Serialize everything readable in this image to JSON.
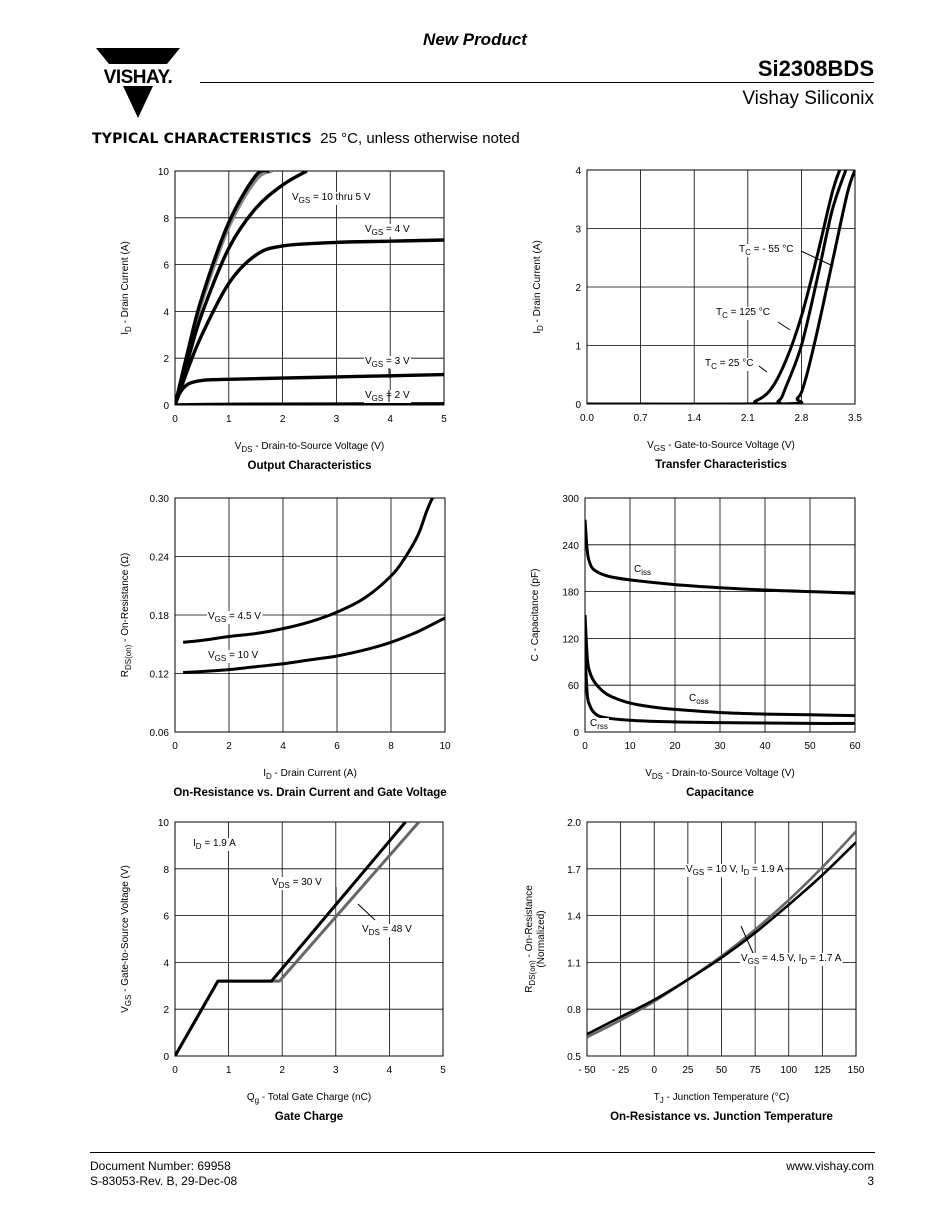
{
  "header": {
    "banner": "New Product",
    "part_number": "Si2308BDS",
    "company": "Vishay Siliconix",
    "logo_text": "VISHAY."
  },
  "section": {
    "title": "TYPICAL CHARACTERISTICS",
    "subtitle": "25 °C, unless otherwise noted"
  },
  "footer": {
    "doc_number": "Document Number: 69958",
    "revision": "S-83053-Rev. B, 29-Dec-08",
    "website": "www.vishay.com",
    "page": "3"
  },
  "chart_data": [
    {
      "id": "output",
      "type": "line",
      "title": "Output Characteristics",
      "xlabel": "V_DS - Drain-to-Source Voltage (V)",
      "ylabel": "I_D - Drain Current (A)",
      "xlim": [
        0,
        5
      ],
      "ylim": [
        0,
        10
      ],
      "xticks": [
        0,
        1,
        2,
        3,
        4,
        5
      ],
      "yticks": [
        0,
        2,
        4,
        6,
        8,
        10
      ],
      "xtick_labels": [
        "0",
        "1",
        "2",
        "3",
        "4",
        "5"
      ],
      "ytick_labels": [
        "0",
        "2",
        "4",
        "6",
        "8",
        "10"
      ],
      "series": [
        {
          "name": "VGS = 10 V",
          "color": "#888888",
          "x": [
            0,
            0.25,
            0.5,
            1.0,
            1.5,
            1.8
          ],
          "y": [
            0,
            2.3,
            4.4,
            7.6,
            9.6,
            10.0
          ]
        },
        {
          "name": "VGS = 5 V",
          "color": "#000000",
          "x": [
            0,
            0.25,
            0.5,
            1.0,
            1.5,
            1.75
          ],
          "y": [
            0,
            2.4,
            4.6,
            7.8,
            9.8,
            10.0
          ]
        },
        {
          "name": "VGS = 4.5 V",
          "color": "#000000",
          "x": [
            0,
            0.25,
            0.5,
            1.0,
            1.5,
            2.0,
            2.45
          ],
          "y": [
            0,
            2.0,
            3.9,
            6.7,
            8.4,
            9.4,
            10.0
          ]
        },
        {
          "name": "VGS = 4 V",
          "color": "#000000",
          "x": [
            0,
            0.25,
            0.5,
            1.0,
            1.5,
            2.0,
            3.0,
            4.0,
            5.0
          ],
          "y": [
            0,
            1.6,
            3.0,
            5.2,
            6.4,
            6.8,
            6.95,
            7.0,
            7.05
          ]
        },
        {
          "name": "VGS = 3 V",
          "color": "#000000",
          "x": [
            0,
            0.1,
            0.25,
            0.5,
            1.0,
            2.0,
            3.0,
            4.0,
            5.0
          ],
          "y": [
            0,
            0.55,
            0.9,
            1.05,
            1.1,
            1.15,
            1.2,
            1.25,
            1.3
          ]
        },
        {
          "name": "VGS = 2 V",
          "color": "#000000",
          "x": [
            0,
            1.0,
            5.0
          ],
          "y": [
            0,
            0.03,
            0.05
          ]
        }
      ],
      "annotations": [
        {
          "base": "V",
          "sub": "GS",
          "rest": " = 10 thru 5 V"
        },
        {
          "base": "V",
          "sub": "GS",
          "rest": " = 4 V"
        },
        {
          "base": "V",
          "sub": "GS",
          "rest": " = 3 V"
        },
        {
          "base": "V",
          "sub": "GS",
          "rest": " = 2 V"
        }
      ]
    },
    {
      "id": "transfer",
      "type": "line",
      "title": "Transfer Characteristics",
      "xlabel": "V_GS - Gate-to-Source Voltage (V)",
      "ylabel": "I_D - Drain Current (A)",
      "xlim": [
        0,
        3.5
      ],
      "ylim": [
        0,
        4
      ],
      "xticks": [
        0,
        0.7,
        1.4,
        2.1,
        2.8,
        3.5
      ],
      "yticks": [
        0,
        1,
        2,
        3,
        4
      ],
      "xtick_labels": [
        "0.0",
        "0.7",
        "1.4",
        "2.1",
        "2.8",
        "3.5"
      ],
      "ytick_labels": [
        "0",
        "1",
        "2",
        "3",
        "4"
      ],
      "series": [
        {
          "name": "TC = 125 °C",
          "color": "#000000",
          "x": [
            0,
            2.0,
            2.2,
            2.4,
            2.6,
            2.8,
            3.0,
            3.2,
            3.3
          ],
          "y": [
            0,
            0,
            0.05,
            0.25,
            0.75,
            1.5,
            2.5,
            3.6,
            4.0
          ]
        },
        {
          "name": "TC = 25 °C",
          "color": "#000000",
          "x": [
            0,
            2.3,
            2.5,
            2.6,
            2.8,
            3.0,
            3.2,
            3.38
          ],
          "y": [
            0,
            0,
            0.05,
            0.3,
            1.0,
            2.1,
            3.3,
            4.0
          ]
        },
        {
          "name": "TC = -55 °C",
          "color": "#000000",
          "x": [
            0,
            2.55,
            2.75,
            2.85,
            3.0,
            3.2,
            3.4,
            3.5
          ],
          "y": [
            0,
            0,
            0.1,
            0.4,
            1.2,
            2.4,
            3.6,
            4.0
          ]
        }
      ],
      "annotations": [
        {
          "base": "T",
          "sub": "C",
          "rest": " = - 55 °C"
        },
        {
          "base": "T",
          "sub": "C",
          "rest": " = 125 °C"
        },
        {
          "base": "T",
          "sub": "C",
          "rest": " = 25 °C"
        }
      ]
    },
    {
      "id": "onres",
      "type": "line",
      "title": "On-Resistance vs. Drain Current and Gate Voltage",
      "xlabel": "I_D - Drain Current (A)",
      "ylabel": "R_DS(on) - On-Resistance (Ω)",
      "xlim": [
        0,
        10
      ],
      "ylim": [
        0.06,
        0.3
      ],
      "xticks": [
        0,
        2,
        4,
        6,
        8,
        10
      ],
      "yticks": [
        0.06,
        0.12,
        0.18,
        0.24,
        0.3
      ],
      "xtick_labels": [
        "0",
        "2",
        "4",
        "6",
        "8",
        "10"
      ],
      "ytick_labels": [
        "0.06",
        "0.12",
        "0.18",
        "0.24",
        "0.30"
      ],
      "series": [
        {
          "name": "VGS = 4.5 V",
          "color": "#000000",
          "x": [
            0.3,
            1,
            2,
            3,
            4,
            5,
            6,
            7,
            8,
            8.5,
            9,
            9.3,
            9.5,
            9.6
          ],
          "y": [
            0.152,
            0.154,
            0.158,
            0.161,
            0.166,
            0.173,
            0.183,
            0.197,
            0.22,
            0.238,
            0.262,
            0.285,
            0.298,
            0.302
          ]
        },
        {
          "name": "VGS = 10 V",
          "color": "#000000",
          "x": [
            0.3,
            1,
            2,
            3,
            4,
            5,
            6,
            7,
            8,
            9,
            10
          ],
          "y": [
            0.121,
            0.122,
            0.124,
            0.127,
            0.13,
            0.134,
            0.138,
            0.144,
            0.152,
            0.163,
            0.177
          ]
        }
      ],
      "annotations": [
        {
          "base": "V",
          "sub": "GS",
          "rest": " = 4.5 V"
        },
        {
          "base": "V",
          "sub": "GS",
          "rest": " = 10 V"
        }
      ]
    },
    {
      "id": "capacitance",
      "type": "line",
      "title": "Capacitance",
      "xlabel": "V_DS - Drain-to-Source Voltage (V)",
      "ylabel": "C - Capacitance (pF)",
      "xlim": [
        0,
        60
      ],
      "ylim": [
        0,
        300
      ],
      "xticks": [
        0,
        10,
        20,
        30,
        40,
        50,
        60
      ],
      "yticks": [
        0,
        60,
        120,
        180,
        240,
        300
      ],
      "xtick_labels": [
        "0",
        "10",
        "20",
        "30",
        "40",
        "50",
        "60"
      ],
      "ytick_labels": [
        "0",
        "60",
        "120",
        "180",
        "240",
        "300"
      ],
      "series": [
        {
          "name": "Ciss",
          "color": "#000000",
          "x": [
            0,
            0.5,
            1,
            2,
            5,
            10,
            20,
            30,
            40,
            50,
            60
          ],
          "y": [
            272,
            232,
            218,
            208,
            200,
            195,
            189,
            185,
            182,
            180,
            178
          ]
        },
        {
          "name": "Coss",
          "color": "#000000",
          "x": [
            0,
            0.5,
            1,
            2,
            4,
            6,
            10,
            15,
            20,
            30,
            40,
            50,
            60
          ],
          "y": [
            150,
            95,
            78,
            65,
            52,
            45,
            37,
            32,
            29,
            25,
            23,
            22,
            21
          ]
        },
        {
          "name": "Crss",
          "color": "#000000",
          "x": [
            0,
            0.5,
            1,
            2,
            4,
            10,
            20,
            30,
            40,
            50,
            60
          ],
          "y": [
            100,
            48,
            35,
            25,
            19,
            15,
            13,
            12,
            11.5,
            11,
            11
          ]
        }
      ],
      "annotations": [
        {
          "base": "C",
          "sub": "iss",
          "rest": ""
        },
        {
          "base": "C",
          "sub": "oss",
          "rest": ""
        },
        {
          "base": "C",
          "sub": "rss",
          "rest": ""
        }
      ]
    },
    {
      "id": "gatecharge",
      "type": "line",
      "title": "Gate Charge",
      "xlabel": "Q_g - Total Gate Charge (nC)",
      "ylabel": "V_GS - Gate-to-Source Voltage (V)",
      "xlim": [
        0,
        5
      ],
      "ylim": [
        0,
        10
      ],
      "xticks": [
        0,
        1,
        2,
        3,
        4,
        5
      ],
      "yticks": [
        0,
        2,
        4,
        6,
        8,
        10
      ],
      "xtick_labels": [
        "0",
        "1",
        "2",
        "3",
        "4",
        "5"
      ],
      "ytick_labels": [
        "0",
        "2",
        "4",
        "6",
        "8",
        "10"
      ],
      "series": [
        {
          "name": "VDS = 48 V",
          "color": "#666666",
          "x": [
            0,
            0.8,
            1.95,
            4.55
          ],
          "y": [
            0,
            3.2,
            3.2,
            10
          ]
        },
        {
          "name": "VDS = 30 V",
          "color": "#000000",
          "x": [
            0,
            0.8,
            1.8,
            4.3
          ],
          "y": [
            0,
            3.2,
            3.2,
            10
          ]
        }
      ],
      "annotations": [
        {
          "base": "I",
          "sub": "D",
          "rest": " = 1.9 A"
        },
        {
          "base": "V",
          "sub": "DS",
          "rest": " = 30 V"
        },
        {
          "base": "V",
          "sub": "DS",
          "rest": " = 48 V"
        }
      ]
    },
    {
      "id": "onres_temp",
      "type": "line",
      "title": "On-Resistance vs. Junction Temperature",
      "xlabel": "T_J - Junction Temperature (°C)",
      "ylabel": "R_DS(on) - On-Resistance (Normalized)",
      "xlim": [
        -50,
        150
      ],
      "ylim": [
        0.5,
        2.0
      ],
      "xticks": [
        -50,
        -25,
        0,
        25,
        50,
        75,
        100,
        125,
        150
      ],
      "yticks": [
        0.5,
        0.8,
        1.1,
        1.4,
        1.7,
        2.0
      ],
      "xtick_labels": [
        "- 50",
        "- 25",
        "0",
        "25",
        "50",
        "75",
        "100",
        "125",
        "150"
      ],
      "ytick_labels": [
        "0.5",
        "0.8",
        "1.1",
        "1.4",
        "1.7",
        "2.0"
      ],
      "series": [
        {
          "name": "VGS = 4.5 V, ID = 1.7 A",
          "color": "#666666",
          "x": [
            -50,
            -25,
            0,
            25,
            50,
            75,
            100,
            125,
            150
          ],
          "y": [
            0.62,
            0.73,
            0.85,
            0.99,
            1.14,
            1.31,
            1.5,
            1.71,
            1.94
          ]
        },
        {
          "name": "VGS = 10 V, ID = 1.9 A",
          "color": "#000000",
          "x": [
            -50,
            -25,
            0,
            25,
            50,
            75,
            100,
            125,
            150
          ],
          "y": [
            0.64,
            0.75,
            0.86,
            0.99,
            1.13,
            1.29,
            1.47,
            1.66,
            1.87
          ]
        }
      ],
      "annotations": [
        {
          "base": "V",
          "sub": "GS",
          "rest": " = 10 V, I",
          "sub2": "D",
          "rest2": " = 1.9 A"
        },
        {
          "base": "V",
          "sub": "GS",
          "rest": " = 4.5 V, I",
          "sub2": "D",
          "rest2": " = 1.7 A"
        }
      ]
    }
  ]
}
